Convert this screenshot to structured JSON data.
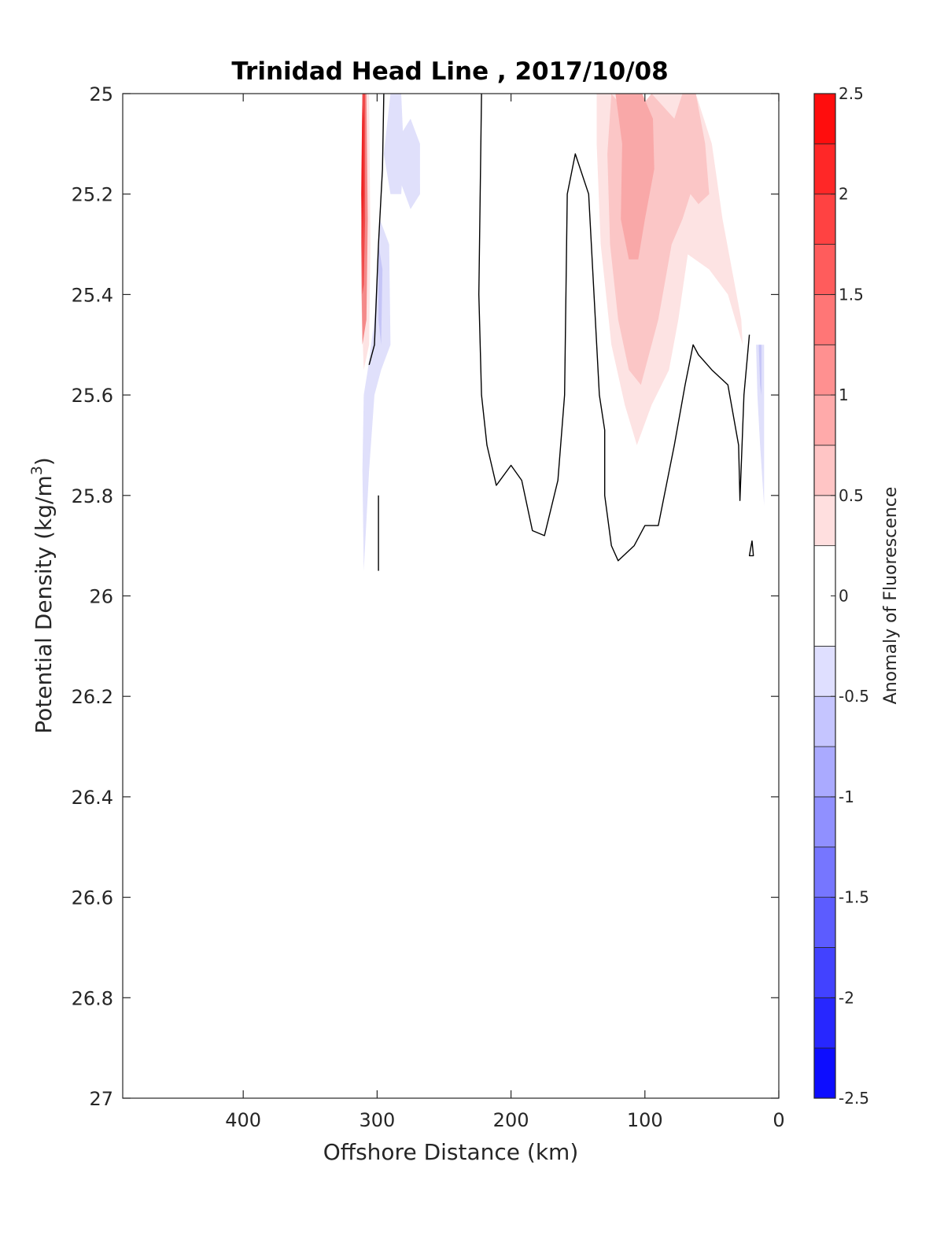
{
  "chart_data": {
    "type": "contour",
    "title": "Trinidad Head Line , 2017/10/08",
    "xlabel": "Offshore Distance (km)",
    "ylabel_main": "Potential Density (kg/m",
    "ylabel_sup": "3",
    "ylabel_close": ")",
    "x_reversed": true,
    "xlim": [
      0,
      490
    ],
    "ylim": [
      25,
      27
    ],
    "y_reversed": true,
    "xticks": [
      400,
      300,
      200,
      100,
      0
    ],
    "xtick_labels": [
      "400",
      "300",
      "200",
      "100",
      "0"
    ],
    "yticks": [
      25,
      25.2,
      25.4,
      25.6,
      25.8,
      26,
      26.2,
      26.4,
      26.6,
      26.8,
      27
    ],
    "ytick_labels": [
      "25",
      "25.2",
      "25.4",
      "25.6",
      "25.8",
      "26",
      "26.2",
      "26.4",
      "26.6",
      "26.8",
      "27"
    ],
    "grid": false,
    "colorbar": {
      "label": "Anomaly of Fluorescence",
      "range": [
        -2.5,
        2.5
      ],
      "ticks": [
        2.5,
        2,
        1.5,
        1,
        0.5,
        0,
        -0.5,
        -1,
        -1.5,
        -2,
        -2.5
      ],
      "tick_labels": [
        "2.5",
        "2",
        "1.5",
        "1",
        "0.5",
        "0",
        "-0.5",
        "-1",
        "-1.5",
        "-2",
        "-2.5"
      ],
      "levels": [
        -2.5,
        -2.25,
        -2,
        -1.75,
        -1.5,
        -1.25,
        -1,
        -0.75,
        -0.5,
        -0.25,
        0.25,
        0.5,
        0.75,
        1,
        1.25,
        1.5,
        1.75,
        2,
        2.25,
        2.5
      ],
      "colormap": "white-centered red/blue"
    },
    "filled_regions": [
      {
        "level": 0.25,
        "color": "#fde3e3",
        "points": [
          [
            136,
            25.0
          ],
          [
            122,
            25.0
          ],
          [
            110,
            25.05
          ],
          [
            95,
            25.0
          ],
          [
            62,
            25.0
          ],
          [
            50,
            25.1
          ],
          [
            42,
            25.25
          ],
          [
            35,
            25.35
          ],
          [
            28,
            25.45
          ],
          [
            27,
            25.5
          ],
          [
            38,
            25.4
          ],
          [
            52,
            25.35
          ],
          [
            68,
            25.32
          ],
          [
            75,
            25.45
          ],
          [
            82,
            25.55
          ],
          [
            95,
            25.62
          ],
          [
            106,
            25.7
          ],
          [
            115,
            25.62
          ],
          [
            125,
            25.5
          ],
          [
            133,
            25.3
          ],
          [
            136,
            25.1
          ]
        ]
      },
      {
        "level": 0.5,
        "color": "#fbc6c6",
        "points": [
          [
            125,
            25.0
          ],
          [
            110,
            25.05
          ],
          [
            95,
            25.0
          ],
          [
            78,
            25.05
          ],
          [
            72,
            25.0
          ],
          [
            62,
            25.0
          ],
          [
            55,
            25.1
          ],
          [
            52,
            25.2
          ],
          [
            60,
            25.22
          ],
          [
            66,
            25.2
          ],
          [
            72,
            25.25
          ],
          [
            80,
            25.3
          ],
          [
            90,
            25.45
          ],
          [
            103,
            25.58
          ],
          [
            112,
            25.55
          ],
          [
            120,
            25.45
          ],
          [
            126,
            25.3
          ],
          [
            128,
            25.12
          ]
        ]
      },
      {
        "level": 0.75,
        "color": "#f9a8a8",
        "points": [
          [
            122,
            25.0
          ],
          [
            117,
            25.1
          ],
          [
            118,
            25.25
          ],
          [
            112,
            25.33
          ],
          [
            105,
            25.33
          ],
          [
            100,
            25.25
          ],
          [
            93,
            25.15
          ],
          [
            94,
            25.05
          ],
          [
            102,
            25.0
          ],
          [
            110,
            25.0
          ]
        ]
      },
      {
        "level": 0.25,
        "color": "#fde3e3",
        "points": [
          [
            311,
            25.0
          ],
          [
            306,
            25.0
          ],
          [
            305,
            25.3
          ],
          [
            306,
            25.5
          ],
          [
            310,
            25.55
          ],
          [
            312,
            25.4
          ]
        ]
      },
      {
        "level": 1.0,
        "color": "#f48989",
        "points": [
          [
            311,
            25.0
          ],
          [
            308,
            25.0
          ],
          [
            307,
            25.25
          ],
          [
            308,
            25.45
          ],
          [
            311,
            25.5
          ],
          [
            312,
            25.3
          ]
        ]
      },
      {
        "level": 1.5,
        "color": "#f04848",
        "points": [
          [
            311,
            25.0
          ],
          [
            309,
            25.0
          ],
          [
            309,
            25.25
          ],
          [
            310,
            25.38
          ],
          [
            311,
            25.4
          ],
          [
            312,
            25.2
          ]
        ]
      },
      {
        "level": 2.0,
        "color": "#ee2020",
        "points": [
          [
            311,
            25.02
          ],
          [
            310,
            25.05
          ],
          [
            310,
            25.2
          ],
          [
            311,
            25.3
          ],
          [
            311.5,
            25.15
          ]
        ]
      },
      {
        "level": -0.25,
        "color": "#e0e0fb",
        "points": [
          [
            290,
            25.0
          ],
          [
            282,
            25.0
          ],
          [
            280,
            25.12
          ],
          [
            282,
            25.2
          ],
          [
            290,
            25.2
          ],
          [
            295,
            25.12
          ]
        ]
      },
      {
        "level": -0.25,
        "color": "#e0e0fb",
        "points": [
          [
            282,
            25.08
          ],
          [
            275,
            25.05
          ],
          [
            268,
            25.1
          ],
          [
            268,
            25.2
          ],
          [
            275,
            25.23
          ],
          [
            282,
            25.18
          ]
        ]
      },
      {
        "level": -0.25,
        "color": "#e0e0fb",
        "points": [
          [
            298,
            25.25
          ],
          [
            291,
            25.3
          ],
          [
            290,
            25.5
          ],
          [
            297,
            25.55
          ],
          [
            302,
            25.6
          ],
          [
            306,
            25.75
          ],
          [
            308,
            25.85
          ],
          [
            310,
            25.95
          ],
          [
            311,
            25.75
          ],
          [
            310,
            25.6
          ],
          [
            307,
            25.55
          ],
          [
            302,
            25.45
          ],
          [
            300,
            25.35
          ]
        ]
      },
      {
        "level": -0.5,
        "color": "#c5c5f7",
        "points": [
          [
            299,
            25.3
          ],
          [
            296,
            25.35
          ],
          [
            297,
            25.5
          ],
          [
            299,
            25.45
          ]
        ]
      },
      {
        "level": -0.25,
        "color": "#e0e0fb",
        "points": [
          [
            17,
            25.5
          ],
          [
            11,
            25.5
          ],
          [
            11,
            25.6
          ],
          [
            11,
            25.82
          ],
          [
            14,
            25.7
          ],
          [
            16,
            25.6
          ]
        ]
      },
      {
        "level": -0.5,
        "color": "#c5c5f7",
        "points": [
          [
            15,
            25.5
          ],
          [
            13,
            25.5
          ],
          [
            13,
            25.6
          ],
          [
            14,
            25.58
          ]
        ]
      }
    ],
    "contour_lines": [
      {
        "level": 0,
        "points": [
          [
            295,
            25.0
          ],
          [
            296,
            25.15
          ],
          [
            299,
            25.3
          ],
          [
            302,
            25.5
          ],
          [
            306,
            25.54
          ]
        ]
      },
      {
        "level": 0,
        "points": [
          [
            299,
            25.8
          ],
          [
            299,
            25.95
          ]
        ]
      },
      {
        "level": 0,
        "points": [
          [
            222,
            25.0
          ],
          [
            223,
            25.2
          ],
          [
            224,
            25.4
          ],
          [
            222,
            25.6
          ],
          [
            218,
            25.7
          ],
          [
            211,
            25.78
          ],
          [
            200,
            25.74
          ],
          [
            192,
            25.77
          ],
          [
            184,
            25.87
          ],
          [
            175,
            25.88
          ],
          [
            165,
            25.77
          ],
          [
            160,
            25.6
          ],
          [
            158,
            25.2
          ],
          [
            152,
            25.12
          ],
          [
            142,
            25.2
          ],
          [
            134,
            25.6
          ],
          [
            130,
            25.67
          ],
          [
            130,
            25.8
          ],
          [
            125,
            25.9
          ],
          [
            120,
            25.93
          ],
          [
            108,
            25.9
          ],
          [
            100,
            25.86
          ],
          [
            90,
            25.86
          ],
          [
            84,
            25.78
          ],
          [
            78,
            25.7
          ],
          [
            70,
            25.58
          ],
          [
            64,
            25.5
          ],
          [
            60,
            25.52
          ],
          [
            50,
            25.55
          ],
          [
            38,
            25.58
          ],
          [
            30,
            25.7
          ],
          [
            29,
            25.81
          ],
          [
            26,
            25.6
          ],
          [
            22,
            25.48
          ]
        ]
      },
      {
        "level": 0,
        "points": [
          [
            20,
            25.89
          ],
          [
            22,
            25.92
          ],
          [
            19,
            25.92
          ],
          [
            20,
            25.89
          ]
        ]
      }
    ]
  }
}
